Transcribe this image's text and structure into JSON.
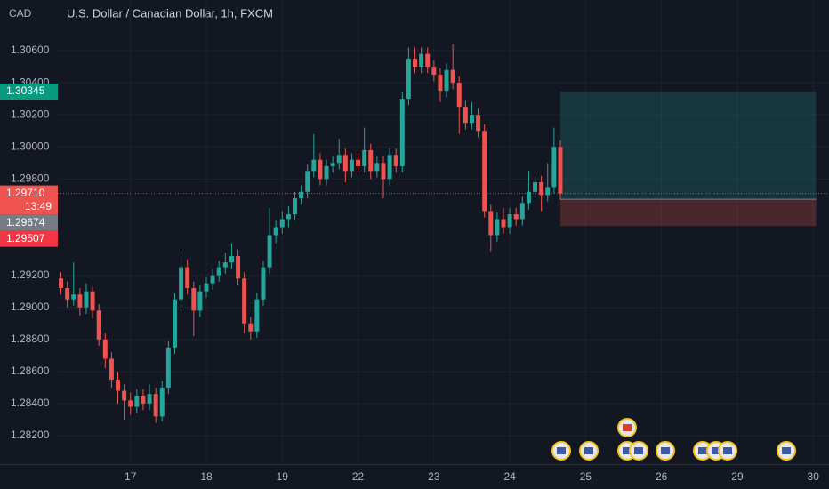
{
  "chart_data": {
    "type": "candlestick",
    "title": "U.S. Dollar / Canadian Dollar, 1h, FXCM",
    "currency": "CAD",
    "up_color": "#26a69a",
    "down_color": "#ef5350",
    "grid": true,
    "xlim": [
      0,
      244
    ],
    "xticks": [
      {
        "value": 23,
        "label": "17"
      },
      {
        "value": 47,
        "label": "18"
      },
      {
        "value": 71,
        "label": "19"
      },
      {
        "value": 95,
        "label": "22"
      },
      {
        "value": 119,
        "label": "23"
      },
      {
        "value": 143,
        "label": "24"
      },
      {
        "value": 167,
        "label": "25"
      },
      {
        "value": 191,
        "label": "26"
      },
      {
        "value": 215,
        "label": "29"
      },
      {
        "value": 239,
        "label": "30"
      }
    ],
    "ylim": [
      1.28023,
      1.30916
    ],
    "yticks": [
      {
        "value": 1.282,
        "label": "1.28200"
      },
      {
        "value": 1.284,
        "label": "1.28400"
      },
      {
        "value": 1.286,
        "label": "1.28600"
      },
      {
        "value": 1.288,
        "label": "1.28800"
      },
      {
        "value": 1.29,
        "label": "1.29000"
      },
      {
        "value": 1.292,
        "label": "1.29200"
      },
      {
        "value": 1.298,
        "label": "1.29800"
      },
      {
        "value": 1.3,
        "label": "1.30000"
      },
      {
        "value": 1.302,
        "label": "1.30200"
      },
      {
        "value": 1.304,
        "label": "1.30400"
      },
      {
        "value": 1.306,
        "label": "1.30600"
      }
    ],
    "x": [
      1,
      3,
      5,
      7,
      9,
      11,
      13,
      15,
      17,
      19,
      21,
      23,
      25,
      27,
      29,
      31,
      33,
      35,
      37,
      39,
      41,
      43,
      45,
      47,
      49,
      51,
      53,
      55,
      57,
      59,
      61,
      63,
      65,
      67,
      69,
      71,
      73,
      75,
      77,
      79,
      81,
      83,
      85,
      87,
      89,
      91,
      93,
      95,
      97,
      99,
      101,
      103,
      105,
      107,
      109,
      111,
      113,
      115,
      117,
      119,
      121,
      123,
      125,
      127,
      129,
      131,
      133,
      135,
      137,
      139,
      141,
      143,
      145,
      147,
      149,
      151,
      153,
      155,
      157,
      159
    ],
    "candles": [
      [
        1.2918,
        1.2922,
        1.2908,
        1.2912
      ],
      [
        1.2912,
        1.2916,
        1.29,
        1.2905
      ],
      [
        1.2905,
        1.2928,
        1.2901,
        1.2908
      ],
      [
        1.2908,
        1.2912,
        1.2895,
        1.29
      ],
      [
        1.29,
        1.2915,
        1.2896,
        1.291
      ],
      [
        1.291,
        1.2913,
        1.2893,
        1.2898
      ],
      [
        1.2898,
        1.2902,
        1.2876,
        1.288
      ],
      [
        1.288,
        1.2884,
        1.2862,
        1.2868
      ],
      [
        1.2868,
        1.2872,
        1.285,
        1.2855
      ],
      [
        1.2855,
        1.286,
        1.284,
        1.2848
      ],
      [
        1.2848,
        1.2852,
        1.283,
        1.2842
      ],
      [
        1.2842,
        1.2847,
        1.2833,
        1.2838
      ],
      [
        1.2838,
        1.2849,
        1.2834,
        1.2845
      ],
      [
        1.2845,
        1.2849,
        1.2836,
        1.284
      ],
      [
        1.284,
        1.2852,
        1.2836,
        1.2846
      ],
      [
        1.2846,
        1.285,
        1.2828,
        1.2832
      ],
      [
        1.2832,
        1.2854,
        1.2829,
        1.285
      ],
      [
        1.285,
        1.2879,
        1.2846,
        1.2875
      ],
      [
        1.2875,
        1.2909,
        1.2871,
        1.2905
      ],
      [
        1.2905,
        1.2935,
        1.29,
        1.2925
      ],
      [
        1.2925,
        1.293,
        1.2908,
        1.2912
      ],
      [
        1.2912,
        1.2916,
        1.2882,
        1.2898
      ],
      [
        1.2898,
        1.2914,
        1.2894,
        1.291
      ],
      [
        1.291,
        1.2919,
        1.2906,
        1.2915
      ],
      [
        1.2915,
        1.2924,
        1.2911,
        1.292
      ],
      [
        1.292,
        1.2929,
        1.2916,
        1.2925
      ],
      [
        1.2925,
        1.2934,
        1.2921,
        1.2928
      ],
      [
        1.2928,
        1.294,
        1.2924,
        1.2932
      ],
      [
        1.2932,
        1.2936,
        1.2914,
        1.2918
      ],
      [
        1.2918,
        1.2922,
        1.2884,
        1.289
      ],
      [
        1.289,
        1.2894,
        1.288,
        1.2885
      ],
      [
        1.2885,
        1.2909,
        1.2881,
        1.2905
      ],
      [
        1.2905,
        1.2929,
        1.2901,
        1.2925
      ],
      [
        1.2925,
        1.2962,
        1.2921,
        1.2945
      ],
      [
        1.2945,
        1.2954,
        1.294,
        1.295
      ],
      [
        1.295,
        1.296,
        1.2946,
        1.2955
      ],
      [
        1.2955,
        1.2963,
        1.295,
        1.2958
      ],
      [
        1.2958,
        1.2972,
        1.2954,
        1.2968
      ],
      [
        1.2968,
        1.2976,
        1.2964,
        1.2972
      ],
      [
        1.2972,
        1.2989,
        1.2968,
        1.2985
      ],
      [
        1.2985,
        1.3008,
        1.2981,
        1.2992
      ],
      [
        1.2992,
        1.2996,
        1.2976,
        1.298
      ],
      [
        1.298,
        1.2992,
        1.2976,
        1.2988
      ],
      [
        1.2988,
        1.2994,
        1.2984,
        1.299
      ],
      [
        1.299,
        1.3005,
        1.2986,
        1.2995
      ],
      [
        1.2995,
        1.2999,
        1.2978,
        1.2985
      ],
      [
        1.2985,
        1.2996,
        1.2981,
        1.2992
      ],
      [
        1.2992,
        1.2996,
        1.2984,
        1.2988
      ],
      [
        1.2988,
        1.3012,
        1.2984,
        1.2998
      ],
      [
        1.2998,
        1.3002,
        1.298,
        1.2985
      ],
      [
        1.2985,
        1.2994,
        1.2981,
        1.299
      ],
      [
        1.299,
        1.2994,
        1.2968,
        1.298
      ],
      [
        1.298,
        1.2999,
        1.2976,
        1.2995
      ],
      [
        1.2995,
        1.2999,
        1.2984,
        1.2988
      ],
      [
        1.2988,
        1.3034,
        1.2984,
        1.303
      ],
      [
        1.303,
        1.3062,
        1.3026,
        1.3055
      ],
      [
        1.3055,
        1.3062,
        1.3046,
        1.305
      ],
      [
        1.305,
        1.3062,
        1.3046,
        1.3058
      ],
      [
        1.3058,
        1.3062,
        1.3046,
        1.305
      ],
      [
        1.305,
        1.3054,
        1.3041,
        1.3045
      ],
      [
        1.3045,
        1.3049,
        1.3028,
        1.3035
      ],
      [
        1.3035,
        1.3052,
        1.3031,
        1.3048
      ],
      [
        1.3048,
        1.3064,
        1.3036,
        1.304
      ],
      [
        1.304,
        1.3044,
        1.3008,
        1.3025
      ],
      [
        1.3025,
        1.3029,
        1.3011,
        1.3015
      ],
      [
        1.3015,
        1.3028,
        1.3011,
        1.302
      ],
      [
        1.302,
        1.3024,
        1.3006,
        1.301
      ],
      [
        1.301,
        1.3014,
        1.2956,
        1.296
      ],
      [
        1.296,
        1.2964,
        1.2935,
        1.2945
      ],
      [
        1.2945,
        1.2959,
        1.2941,
        1.2955
      ],
      [
        1.2955,
        1.2962,
        1.2946,
        1.295
      ],
      [
        1.295,
        1.2962,
        1.2946,
        1.2958
      ],
      [
        1.2958,
        1.2962,
        1.2951,
        1.2955
      ],
      [
        1.2955,
        1.2969,
        1.2951,
        1.2965
      ],
      [
        1.2965,
        1.2985,
        1.2961,
        1.2972
      ],
      [
        1.2972,
        1.2982,
        1.2968,
        1.2978
      ],
      [
        1.2978,
        1.2982,
        1.296,
        1.297
      ],
      [
        1.297,
        1.299,
        1.2966,
        1.2975
      ],
      [
        1.2975,
        1.3012,
        1.2971,
        1.3
      ],
      [
        1.3,
        1.3004,
        1.2967,
        1.2971
      ]
    ],
    "position": {
      "x_range": [
        159,
        240
      ],
      "target": {
        "value": 1.30345,
        "label": "1.30345"
      },
      "entry": {
        "value": 1.29674,
        "label": "1.29674"
      },
      "stop": {
        "value": 1.29507,
        "label": "1.29507"
      }
    },
    "current_price": {
      "value": 1.2971,
      "label": "1.29710"
    },
    "countdown": "13:49"
  }
}
